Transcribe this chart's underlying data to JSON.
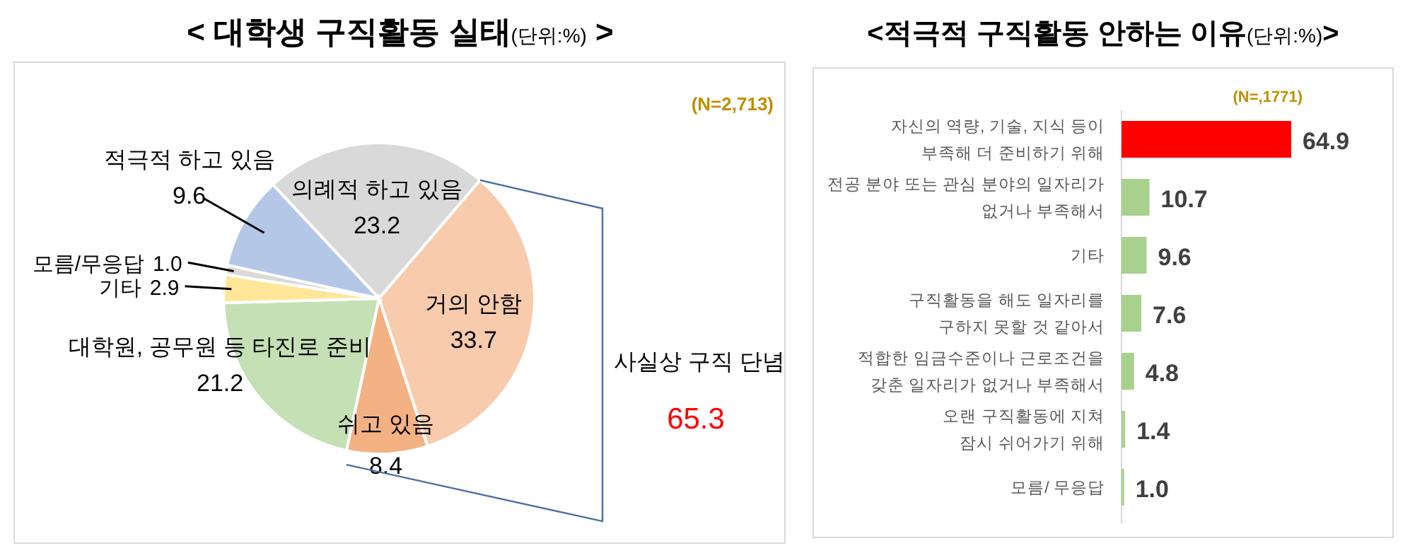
{
  "chart_data": [
    {
      "type": "pie",
      "title": "< 대학생 구직활동 실태(단위:%) >",
      "categories": [
        "의례적 하고 있음",
        "거의 안함",
        "쉬고 있음",
        "대학원, 공무원 등 타진로 준비",
        "기타",
        "모름/무응답",
        "적극적 하고 있음"
      ],
      "values": [
        23.2,
        33.7,
        8.4,
        21.2,
        2.9,
        1.0,
        9.6
      ],
      "colors": [
        "#d9d9d9",
        "#f8cbad",
        "#f4b183",
        "#c5e0b4",
        "#ffe699",
        "#d9d9d9",
        "#b4c7e7"
      ],
      "value_labels": [
        "23.2",
        "33.7",
        "8.4",
        "21.2",
        "2.9",
        "1.0",
        "9.6"
      ],
      "annotations": [
        "(N=2,713)",
        "사실상 구직 단념",
        "65.3"
      ]
    },
    {
      "type": "bar",
      "orientation": "horizontal",
      "title": "<적극적 구직활동 안하는 이유(단위:%)>",
      "categories": [
        "자신의 역량, 기술, 지식 등이\n부족해 더 준비하기 위해",
        "전공 분야 또는 관심 분야의 일자리가\n없거나 부족해서",
        "기타",
        "구직활동을 해도 일자리를\n구하지 못할 것 같아서",
        "적합한 임금수준이나 근로조건을\n갖춘 일자리가 없거나 부족해서",
        "오랜 구직활동에 지쳐\n잠시 쉬어가기 위해",
        "모름/ 무응답"
      ],
      "values": [
        64.9,
        10.7,
        9.6,
        7.6,
        4.8,
        1.4,
        1.0
      ],
      "colors": [
        "#ff0000",
        "#a9d18e",
        "#a9d18e",
        "#a9d18e",
        "#a9d18e",
        "#a9d18e",
        "#a9d18e"
      ],
      "value_labels": [
        "64.9",
        "10.7",
        "9.6",
        "7.6",
        "4.8",
        "1.4",
        "1.0"
      ],
      "annotations": [
        "(N=,1771)"
      ]
    }
  ]
}
